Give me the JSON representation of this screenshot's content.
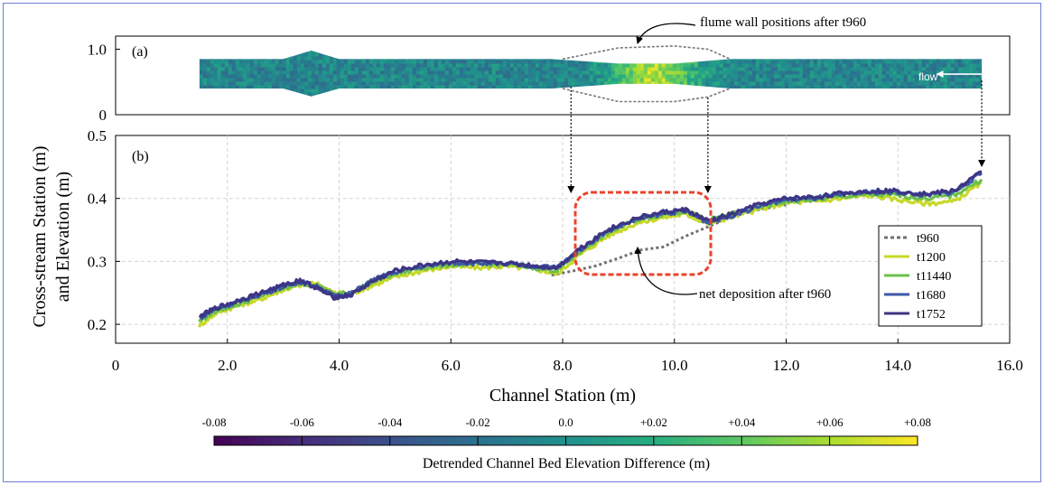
{
  "chart_data": [
    {
      "panel": "(a)",
      "type": "heatmap",
      "ylabel": "Cross-stream Station (m)",
      "ylim": [
        0,
        1.2
      ],
      "yticks": [
        0,
        1.0
      ],
      "xlim": [
        0,
        16
      ],
      "annotations": [
        "flume wall positions after t960",
        "flow"
      ],
      "channel_upper_wall": [
        [
          1.5,
          0.85
        ],
        [
          3.0,
          0.85
        ],
        [
          3.5,
          0.98
        ],
        [
          4.0,
          0.85
        ],
        [
          7.8,
          0.85
        ],
        [
          9.0,
          0.78
        ],
        [
          10.0,
          0.78
        ],
        [
          11.0,
          0.85
        ],
        [
          15.5,
          0.85
        ]
      ],
      "channel_lower_wall": [
        [
          1.5,
          0.4
        ],
        [
          3.0,
          0.4
        ],
        [
          3.5,
          0.28
        ],
        [
          4.0,
          0.4
        ],
        [
          7.8,
          0.4
        ],
        [
          9.0,
          0.47
        ],
        [
          10.0,
          0.47
        ],
        [
          11.0,
          0.4
        ],
        [
          15.5,
          0.4
        ]
      ],
      "wall_after_t960_upper": [
        [
          8.0,
          0.85
        ],
        [
          9.0,
          1.02
        ],
        [
          10.0,
          1.05
        ],
        [
          10.6,
          1.0
        ],
        [
          11.0,
          0.85
        ]
      ],
      "wall_after_t960_lower": [
        [
          8.0,
          0.4
        ],
        [
          9.0,
          0.2
        ],
        [
          10.0,
          0.2
        ],
        [
          10.6,
          0.27
        ],
        [
          11.0,
          0.4
        ]
      ],
      "colorbar": {
        "label": "Detrended Channel Bed Elevation Difference (m)",
        "ticks": [
          "-0.08",
          "-0.06",
          "-0.04",
          "-0.02",
          "0.0",
          "+0.02",
          "+0.04",
          "+0.06",
          "+0.08"
        ],
        "range": [
          -0.08,
          0.08
        ],
        "colors": [
          "#440154",
          "#472c7a",
          "#3b518b",
          "#2c718e",
          "#21908d",
          "#27ad81",
          "#5cc863",
          "#aadc32",
          "#fde725"
        ]
      }
    },
    {
      "panel": "(b)",
      "type": "line",
      "xlabel": "Channel Station (m)",
      "ylabel": "and Elevation (m)",
      "xlim": [
        0,
        16
      ],
      "ylim": [
        0.17,
        0.5
      ],
      "xticks": [
        "0",
        "2.0",
        "4.0",
        "6.0",
        "8.0",
        "10.0",
        "12.0",
        "14.0",
        "16.0"
      ],
      "yticks": [
        "0.2",
        "0.3",
        "0.4",
        "0.5"
      ],
      "grid": true,
      "legend_position": "right",
      "annotations": [
        "net deposition after t960"
      ],
      "series": [
        {
          "name": "t960",
          "color": "#707070",
          "dashed": true,
          "points": [
            [
              7.8,
              0.278
            ],
            [
              8.2,
              0.285
            ],
            [
              8.6,
              0.293
            ],
            [
              9.0,
              0.305
            ],
            [
              9.4,
              0.318
            ],
            [
              9.8,
              0.323
            ],
            [
              10.2,
              0.34
            ],
            [
              10.6,
              0.355
            ],
            [
              11.0,
              0.37
            ],
            [
              11.5,
              0.382
            ],
            [
              12.0,
              0.39
            ]
          ]
        },
        {
          "name": "t1200",
          "color": "#c8d82a",
          "dashed": false,
          "points": [
            [
              1.5,
              0.198
            ],
            [
              1.8,
              0.218
            ],
            [
              2.2,
              0.23
            ],
            [
              2.6,
              0.24
            ],
            [
              3.0,
              0.255
            ],
            [
              3.3,
              0.262
            ],
            [
              3.6,
              0.265
            ],
            [
              3.9,
              0.25
            ],
            [
              4.2,
              0.248
            ],
            [
              4.6,
              0.262
            ],
            [
              5.0,
              0.275
            ],
            [
              5.5,
              0.285
            ],
            [
              6.0,
              0.292
            ],
            [
              6.5,
              0.29
            ],
            [
              7.0,
              0.292
            ],
            [
              7.5,
              0.288
            ],
            [
              7.9,
              0.28
            ],
            [
              8.3,
              0.31
            ],
            [
              8.8,
              0.34
            ],
            [
              9.3,
              0.36
            ],
            [
              9.8,
              0.37
            ],
            [
              10.2,
              0.375
            ],
            [
              10.6,
              0.36
            ],
            [
              11.0,
              0.37
            ],
            [
              11.5,
              0.382
            ],
            [
              12.0,
              0.393
            ],
            [
              12.5,
              0.395
            ],
            [
              13.0,
              0.4
            ],
            [
              13.5,
              0.405
            ],
            [
              14.0,
              0.398
            ],
            [
              14.5,
              0.392
            ],
            [
              15.0,
              0.395
            ],
            [
              15.5,
              0.425
            ]
          ]
        },
        {
          "name": "t11440",
          "color": "#6cc04a",
          "dashed": false,
          "points": [
            [
              1.5,
              0.205
            ],
            [
              1.8,
              0.222
            ],
            [
              2.2,
              0.232
            ],
            [
              2.6,
              0.245
            ],
            [
              3.0,
              0.258
            ],
            [
              3.3,
              0.265
            ],
            [
              3.6,
              0.262
            ],
            [
              3.9,
              0.248
            ],
            [
              4.2,
              0.25
            ],
            [
              4.6,
              0.268
            ],
            [
              5.0,
              0.28
            ],
            [
              5.5,
              0.29
            ],
            [
              6.0,
              0.295
            ],
            [
              6.5,
              0.295
            ],
            [
              7.0,
              0.295
            ],
            [
              7.5,
              0.29
            ],
            [
              7.9,
              0.285
            ],
            [
              8.3,
              0.315
            ],
            [
              8.8,
              0.345
            ],
            [
              9.3,
              0.365
            ],
            [
              9.8,
              0.375
            ],
            [
              10.2,
              0.38
            ],
            [
              10.6,
              0.365
            ],
            [
              11.0,
              0.375
            ],
            [
              11.5,
              0.385
            ],
            [
              12.0,
              0.395
            ],
            [
              12.5,
              0.398
            ],
            [
              13.0,
              0.403
            ],
            [
              13.5,
              0.406
            ],
            [
              14.0,
              0.405
            ],
            [
              14.5,
              0.4
            ],
            [
              15.0,
              0.405
            ],
            [
              15.5,
              0.43
            ]
          ]
        },
        {
          "name": "t1680",
          "color": "#3b5aa8",
          "dashed": false,
          "points": [
            [
              1.5,
              0.21
            ],
            [
              1.8,
              0.225
            ],
            [
              2.2,
              0.236
            ],
            [
              2.6,
              0.248
            ],
            [
              3.0,
              0.26
            ],
            [
              3.3,
              0.268
            ],
            [
              3.6,
              0.26
            ],
            [
              3.9,
              0.245
            ],
            [
              4.2,
              0.248
            ],
            [
              4.6,
              0.27
            ],
            [
              5.0,
              0.283
            ],
            [
              5.5,
              0.292
            ],
            [
              6.0,
              0.298
            ],
            [
              6.5,
              0.297
            ],
            [
              7.0,
              0.296
            ],
            [
              7.5,
              0.292
            ],
            [
              7.9,
              0.29
            ],
            [
              8.3,
              0.318
            ],
            [
              8.8,
              0.348
            ],
            [
              9.3,
              0.366
            ],
            [
              9.8,
              0.376
            ],
            [
              10.2,
              0.38
            ],
            [
              10.6,
              0.362
            ],
            [
              11.0,
              0.372
            ],
            [
              11.5,
              0.388
            ],
            [
              12.0,
              0.398
            ],
            [
              12.5,
              0.4
            ],
            [
              13.0,
              0.406
            ],
            [
              13.5,
              0.41
            ],
            [
              14.0,
              0.41
            ],
            [
              14.5,
              0.405
            ],
            [
              15.0,
              0.41
            ],
            [
              15.5,
              0.44
            ]
          ]
        },
        {
          "name": "t1752",
          "color": "#3d3585",
          "dashed": false,
          "points": [
            [
              1.5,
              0.212
            ],
            [
              1.8,
              0.226
            ],
            [
              2.2,
              0.238
            ],
            [
              2.6,
              0.25
            ],
            [
              3.0,
              0.262
            ],
            [
              3.3,
              0.27
            ],
            [
              3.6,
              0.258
            ],
            [
              3.9,
              0.243
            ],
            [
              4.2,
              0.246
            ],
            [
              4.6,
              0.268
            ],
            [
              5.0,
              0.285
            ],
            [
              5.5,
              0.294
            ],
            [
              6.0,
              0.3
            ],
            [
              6.5,
              0.298
            ],
            [
              7.0,
              0.297
            ],
            [
              7.5,
              0.293
            ],
            [
              7.9,
              0.29
            ],
            [
              8.3,
              0.32
            ],
            [
              8.8,
              0.35
            ],
            [
              9.3,
              0.368
            ],
            [
              9.8,
              0.378
            ],
            [
              10.2,
              0.382
            ],
            [
              10.6,
              0.364
            ],
            [
              11.0,
              0.374
            ],
            [
              11.5,
              0.39
            ],
            [
              12.0,
              0.4
            ],
            [
              12.5,
              0.402
            ],
            [
              13.0,
              0.408
            ],
            [
              13.5,
              0.412
            ],
            [
              14.0,
              0.412
            ],
            [
              14.5,
              0.407
            ],
            [
              15.0,
              0.412
            ],
            [
              15.5,
              0.442
            ]
          ]
        }
      ]
    }
  ]
}
